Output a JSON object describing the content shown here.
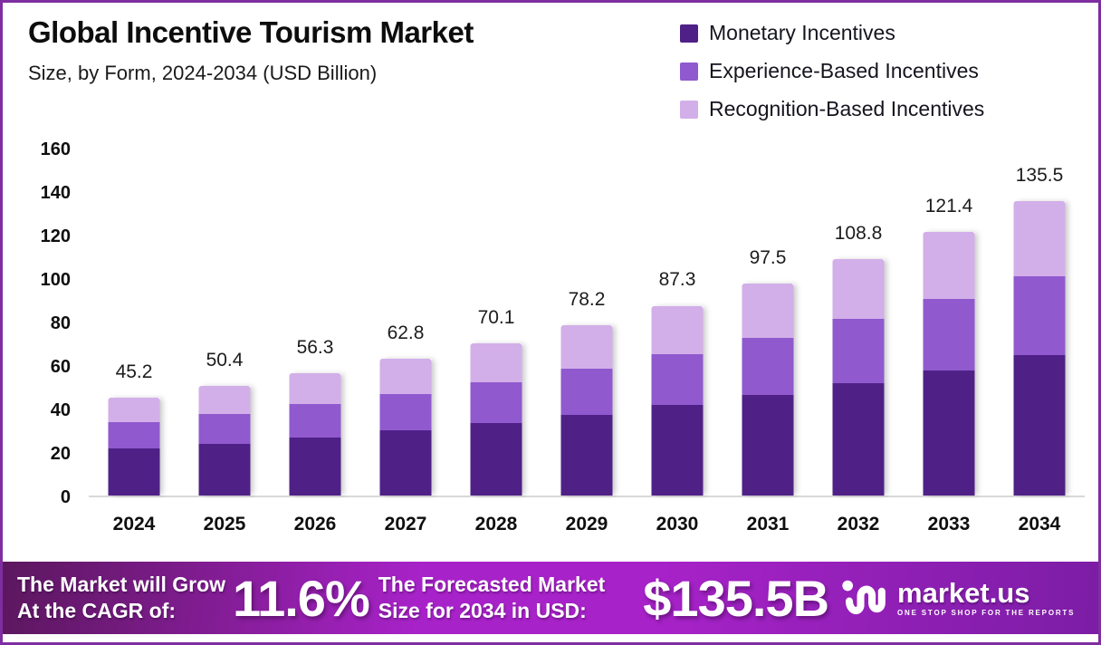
{
  "chart_data": {
    "type": "bar",
    "stacked": true,
    "title": "Global Incentive Tourism Market",
    "subtitle": "Size, by Form, 2024-2034 (USD Billion)",
    "unit": "USD Billion",
    "categories": [
      2024,
      2025,
      2026,
      2027,
      2028,
      2029,
      2030,
      2031,
      2032,
      2033,
      2034
    ],
    "series": [
      {
        "name": "Monetary Incentives",
        "color": "#4F2187",
        "values": [
          21.5,
          23.9,
          26.7,
          29.8,
          33.3,
          37.2,
          41.5,
          46.3,
          51.7,
          57.7,
          64.4
        ]
      },
      {
        "name": "Experience-Based Incentives",
        "color": "#9059CE",
        "values": [
          12.2,
          13.6,
          15.2,
          17.0,
          18.9,
          21.1,
          23.6,
          26.3,
          29.4,
          32.8,
          36.6
        ]
      },
      {
        "name": "Recognition-Based Incentives",
        "color": "#D2AFE9",
        "values": [
          11.5,
          12.9,
          14.4,
          16.0,
          17.9,
          19.9,
          22.2,
          24.9,
          27.7,
          30.9,
          34.5
        ]
      }
    ],
    "totals": [
      "45.2",
      "50.4",
      "56.3",
      "62.8",
      "70.1",
      "78.2",
      "87.3",
      "97.5",
      "108.8",
      "121.4",
      "135.5"
    ],
    "ylim": [
      0,
      160
    ],
    "ytick_step": 20,
    "grid": false,
    "legend_position": "top-right"
  },
  "footer": {
    "grow_line1": "The Market will Grow",
    "grow_line2": "At the CAGR of:",
    "cagr_value": "11.6%",
    "forecast_line1": "The Forecasted Market",
    "forecast_line2": "Size for 2034 in USD:",
    "market_size_value": "$135.5B",
    "brand_name": "market.us",
    "brand_tagline": "ONE STOP SHOP FOR THE REPORTS"
  },
  "colors": {
    "border": "#7E2EA0",
    "axis_line": "#D9D9D9",
    "banner_gradient": [
      "#5C175E",
      "#A722C8",
      "#7C1DA5"
    ],
    "title_text": "#0D0D0D",
    "banner_text": "#FFFFFF"
  }
}
